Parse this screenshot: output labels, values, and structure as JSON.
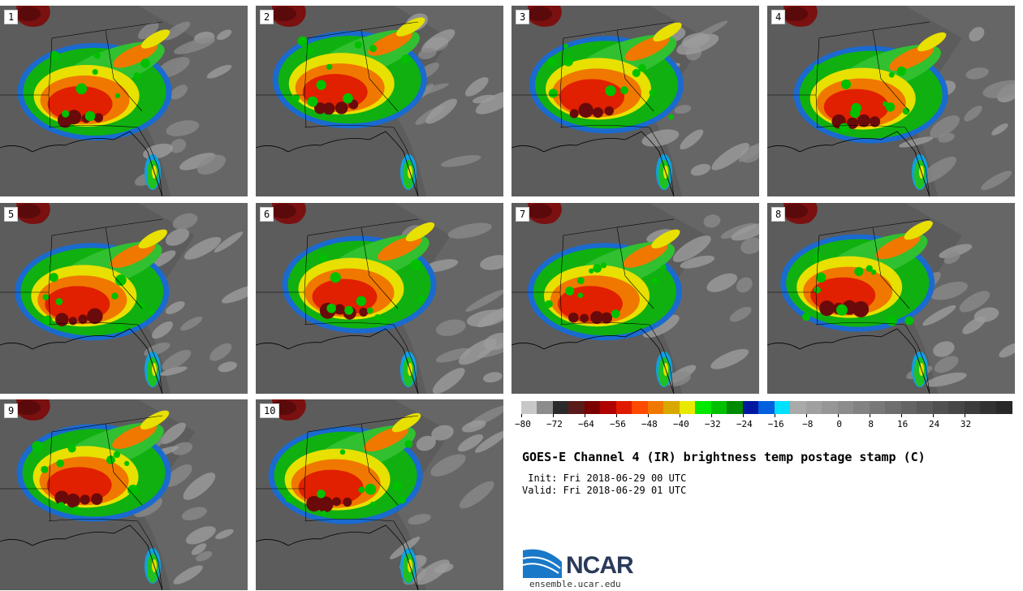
{
  "panels": [
    {
      "label": "1"
    },
    {
      "label": "2"
    },
    {
      "label": "3"
    },
    {
      "label": "4"
    },
    {
      "label": "5"
    },
    {
      "label": "6"
    },
    {
      "label": "7"
    },
    {
      "label": "8"
    },
    {
      "label": "9"
    },
    {
      "label": "10"
    }
  ],
  "colorbar": {
    "ticks": [
      "−80",
      "−72",
      "−64",
      "−56",
      "−48",
      "−40",
      "−32",
      "−24",
      "−16",
      "−8",
      "0",
      "8",
      "16",
      "24",
      "32"
    ],
    "colors": [
      "#c8c8c8",
      "#8c8c8c",
      "#2a2a2a",
      "#5a1a1a",
      "#7a0000",
      "#b00000",
      "#e01a00",
      "#ff4a00",
      "#f07800",
      "#d8a800",
      "#e8e800",
      "#00e800",
      "#00c000",
      "#008a00",
      "#0018a0",
      "#0060e0",
      "#00e0ff",
      "#aaaaaa",
      "#a0a0a0",
      "#969696",
      "#8c8c8c",
      "#828282",
      "#787878",
      "#6e6e6e",
      "#646464",
      "#5a5a5a",
      "#505050",
      "#464646",
      "#3c3c3c",
      "#323232",
      "#282828"
    ]
  },
  "title": "GOES-E Channel 4 (IR) brightness temp postage stamp (C)",
  "init": " Init: Fri 2018-06-29 00 UTC",
  "valid": "Valid: Fri 2018-06-29 01 UTC",
  "logo": {
    "text": "NCAR",
    "url": "ensemble.ucar.edu"
  }
}
